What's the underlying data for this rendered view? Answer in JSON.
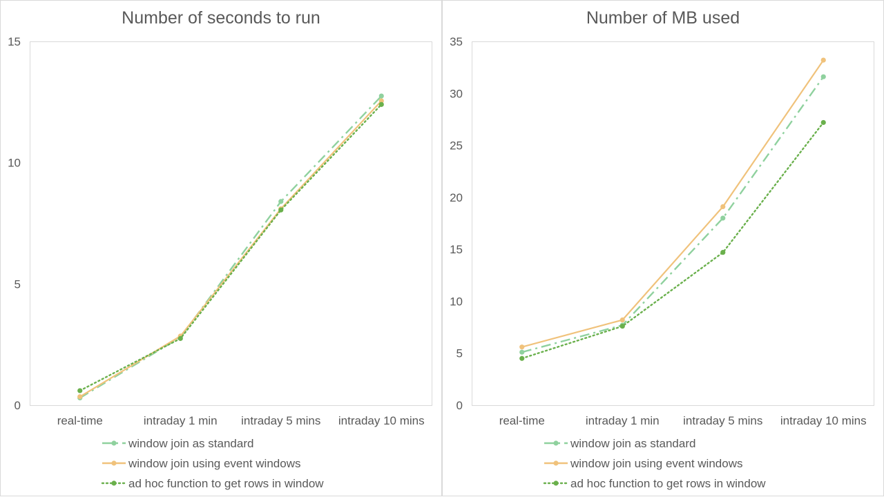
{
  "chart_data": [
    {
      "type": "line",
      "title": "Number of seconds to run",
      "xlabel": "",
      "ylabel": "",
      "categories": [
        "real-time",
        "intraday 1 min",
        "intraday 5 mins",
        "intraday 10 mins"
      ],
      "ylim": [
        0,
        15
      ],
      "yticks": [
        0,
        5,
        10,
        15
      ],
      "grid": false,
      "legend": "bottom",
      "series": [
        {
          "name": "window join as standard",
          "values": [
            0.3,
            2.8,
            8.4,
            12.75
          ],
          "color": "#8fd19e",
          "style": "dashdot"
        },
        {
          "name": "window join using event windows",
          "values": [
            0.35,
            2.85,
            8.1,
            12.55
          ],
          "color": "#f0c27b",
          "style": "solid"
        },
        {
          "name": "ad hoc function to get rows in window",
          "values": [
            0.6,
            2.75,
            8.05,
            12.4
          ],
          "color": "#6ab04c",
          "style": "dotted"
        }
      ]
    },
    {
      "type": "line",
      "title": "Number of MB used",
      "xlabel": "",
      "ylabel": "",
      "categories": [
        "real-time",
        "intraday 1 min",
        "intraday 5 mins",
        "intraday 10 mins"
      ],
      "ylim": [
        0,
        35
      ],
      "yticks": [
        0,
        5,
        10,
        15,
        20,
        25,
        30,
        35
      ],
      "grid": false,
      "legend": "bottom",
      "series": [
        {
          "name": "window join as standard",
          "values": [
            5.1,
            7.7,
            18.0,
            31.6
          ],
          "color": "#8fd19e",
          "style": "dashdot"
        },
        {
          "name": "window join using event windows",
          "values": [
            5.6,
            8.2,
            19.1,
            33.2
          ],
          "color": "#f0c27b",
          "style": "solid"
        },
        {
          "name": "ad hoc function to get rows in window",
          "values": [
            4.5,
            7.6,
            14.7,
            27.2
          ],
          "color": "#6ab04c",
          "style": "dotted"
        }
      ]
    }
  ]
}
